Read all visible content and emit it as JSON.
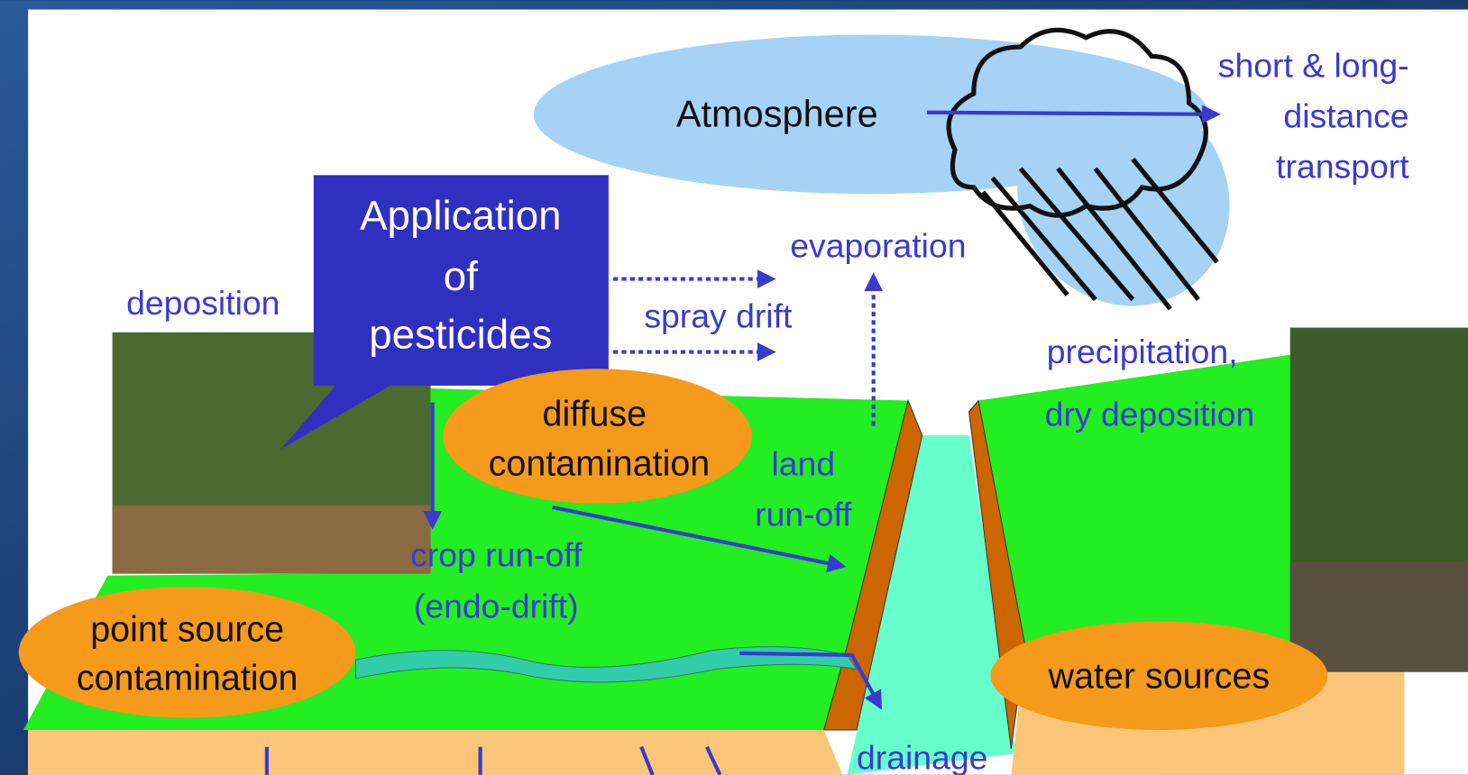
{
  "atmosphere": "Atmosphere",
  "transport": [
    "short & long-",
    "distance",
    "transport"
  ],
  "application": [
    "Application",
    "of",
    "pesticides"
  ],
  "evaporation": "evaporation",
  "deposition": "deposition",
  "spray_drift": "spray drift",
  "precipitation": [
    "precipitation,",
    "dry deposition"
  ],
  "diffuse": [
    "diffuse",
    "contamination"
  ],
  "land_runoff": [
    "land",
    "run-off"
  ],
  "crop_runoff": [
    "crop run-off",
    "(endo-drift)"
  ],
  "point_source": [
    "point source",
    "contamination"
  ],
  "water_sources": "water sources",
  "drainage": "drainage"
}
